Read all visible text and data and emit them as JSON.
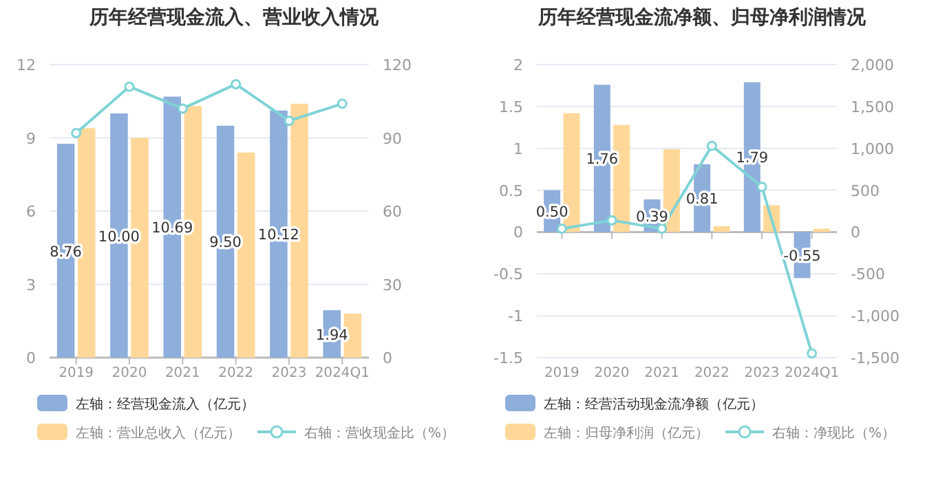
{
  "chart_data": [
    {
      "type": "bar",
      "title": "历年经营现金流入、营业收入情况",
      "categories": [
        "2019",
        "2020",
        "2021",
        "2022",
        "2023",
        "2024Q1"
      ],
      "series": [
        {
          "name": "左轴：经营现金流入（亿元）",
          "color": "#8eaedb",
          "values": [
            8.76,
            10.0,
            10.69,
            9.5,
            10.12,
            1.94
          ],
          "value_labels": [
            "8.76",
            "10.00",
            "10.69",
            "9.50",
            "10.12",
            "1.94"
          ]
        },
        {
          "name": "左轴：营业总收入（亿元）",
          "color": "#ffd899",
          "values": [
            9.4,
            9.0,
            10.3,
            8.4,
            10.4,
            1.8
          ]
        },
        {
          "name": "右轴：营收现金比（%）",
          "type": "line",
          "axis": "y2",
          "color": "#7fd3d6",
          "marker": "circle",
          "values": [
            92,
            111,
            102,
            112,
            97,
            104
          ]
        }
      ],
      "ylim": [
        0,
        12
      ],
      "yticks": [
        0,
        3,
        6,
        9,
        12
      ],
      "y2lim": [
        0,
        120
      ],
      "y2ticks": [
        0,
        30,
        60,
        90,
        120
      ],
      "grid": "y",
      "legend": "bottom"
    },
    {
      "type": "bar",
      "title": "历年经营现金流净额、归母净利润情况",
      "categories": [
        "2019",
        "2020",
        "2021",
        "2022",
        "2023",
        "2024Q1"
      ],
      "series": [
        {
          "name": "左轴：经营活动现金流净额（亿元）",
          "color": "#8eaedb",
          "values": [
            0.5,
            1.76,
            0.39,
            0.81,
            1.79,
            -0.55
          ],
          "value_labels": [
            "0.50",
            "1.76",
            "0.39",
            "0.81",
            "1.79",
            "-0.55"
          ]
        },
        {
          "name": "左轴：归母净利润（亿元）",
          "color": "#ffd899",
          "values": [
            1.42,
            1.28,
            0.99,
            0.07,
            0.32,
            0.04
          ]
        },
        {
          "name": "右轴：净现比（%）",
          "type": "line",
          "axis": "y2",
          "color": "#7fd3d6",
          "marker": "circle",
          "values": [
            40,
            140,
            40,
            1030,
            540,
            -1450
          ]
        }
      ],
      "ylim": [
        -1.5,
        2
      ],
      "yticks": [
        -1.5,
        -1,
        -0.5,
        0,
        0.5,
        1,
        1.5,
        2
      ],
      "y2lim": [
        -1500,
        2000
      ],
      "y2ticks": [
        {
          "value": -1500,
          "label": "-1,500"
        },
        {
          "value": -1000,
          "label": "-1,000"
        },
        -500,
        0,
        500,
        {
          "value": 1000,
          "label": "1,000"
        },
        {
          "value": 1500,
          "label": "1,500"
        },
        {
          "value": 2000,
          "label": "2,000"
        }
      ],
      "grid": "y",
      "legend": "bottom"
    }
  ]
}
